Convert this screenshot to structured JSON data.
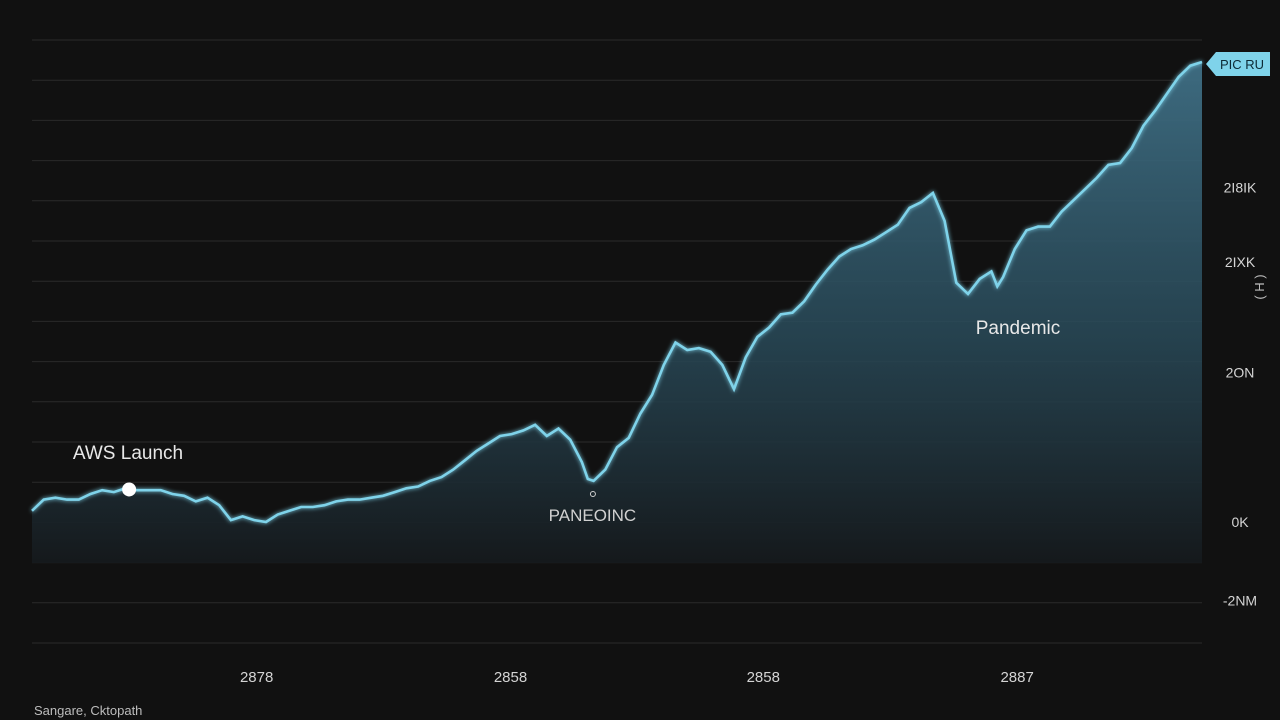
{
  "colors": {
    "background": "#111111",
    "grid": "#2a2a2a",
    "line": "#7fd3ea",
    "fill_top": "#3f6f85",
    "fill_bottom": "#15191c",
    "badge": "#7fd3ea"
  },
  "source_note": "Sangare, Cktopath",
  "chart_data": {
    "type": "area",
    "title": "",
    "xlabel": "",
    "ylabel": "",
    "grid": true,
    "xlim": [
      0,
      1000
    ],
    "ylim": [
      -2,
      12
    ],
    "x_ticks": [
      {
        "label": "2878",
        "x": 192
      },
      {
        "label": "2858",
        "x": 409
      },
      {
        "label": "2858",
        "x": 625
      },
      {
        "label": "2887",
        "x": 842
      }
    ],
    "y_ticks": [
      {
        "label": "2I8IK",
        "y": 8.95
      },
      {
        "label": "2IXK",
        "y": 6.95
      },
      {
        "label": "2ON",
        "y": 4.0
      },
      {
        "label": "0K",
        "y": 0.0
      },
      {
        "label": "-2NM",
        "y": -2.1
      }
    ],
    "side_label": "( H )",
    "end_label": "PIC RU",
    "annotations": [
      {
        "text": "AWS Launch",
        "x": 83,
        "y": 0.87,
        "marker": true
      },
      {
        "text": "PANEOINC",
        "x": 479,
        "y": -0.85,
        "marker": true
      },
      {
        "text": "Pandemic",
        "x": 842,
        "y": 5.7,
        "marker": false
      }
    ],
    "series": [
      {
        "x": [
          0,
          10,
          20,
          30,
          40,
          50,
          60,
          70,
          80,
          83,
          90,
          100,
          110,
          120,
          130,
          140,
          150,
          160,
          170,
          180,
          190,
          200,
          210,
          220,
          230,
          240,
          250,
          260,
          270,
          280,
          290,
          300,
          310,
          320,
          330,
          340,
          350,
          360,
          370,
          380,
          390,
          400,
          410,
          420,
          430,
          440,
          450,
          460,
          470,
          475,
          480,
          490,
          500,
          510,
          520,
          530,
          540,
          550,
          560,
          570,
          580,
          590,
          600,
          610,
          620,
          630,
          640,
          650,
          660,
          670,
          680,
          690,
          700,
          710,
          720,
          730,
          740,
          750,
          760,
          770,
          780,
          790,
          800,
          810,
          820,
          825,
          830,
          840,
          850,
          860,
          870,
          880,
          890,
          900,
          910,
          920,
          930,
          940,
          950,
          960,
          970,
          980,
          990,
          1000
        ],
        "y": [
          0.3,
          0.6,
          0.65,
          0.6,
          0.6,
          0.75,
          0.85,
          0.8,
          0.9,
          0.87,
          0.85,
          0.85,
          0.85,
          0.75,
          0.7,
          0.55,
          0.65,
          0.45,
          0.05,
          0.15,
          0.05,
          0.0,
          0.2,
          0.3,
          0.4,
          0.4,
          0.45,
          0.55,
          0.6,
          0.6,
          0.65,
          0.7,
          0.8,
          0.9,
          0.95,
          1.1,
          1.2,
          1.4,
          1.65,
          1.9,
          2.1,
          2.3,
          2.35,
          2.45,
          2.6,
          2.3,
          2.5,
          2.2,
          1.6,
          1.15,
          1.1,
          1.4,
          2.0,
          2.25,
          2.9,
          3.4,
          4.2,
          4.8,
          4.6,
          4.65,
          4.55,
          4.2,
          3.55,
          4.4,
          4.95,
          5.2,
          5.55,
          5.6,
          5.9,
          6.35,
          6.75,
          7.1,
          7.3,
          7.4,
          7.55,
          7.75,
          7.95,
          8.4,
          8.55,
          8.8,
          8.05,
          6.4,
          6.1,
          6.5,
          6.7,
          6.3,
          6.55,
          7.3,
          7.8,
          7.9,
          7.9,
          8.3,
          8.6,
          8.9,
          9.2,
          9.55,
          9.6,
          10.0,
          10.6,
          11.0,
          11.45,
          11.9,
          12.2,
          12.3
        ]
      }
    ]
  }
}
